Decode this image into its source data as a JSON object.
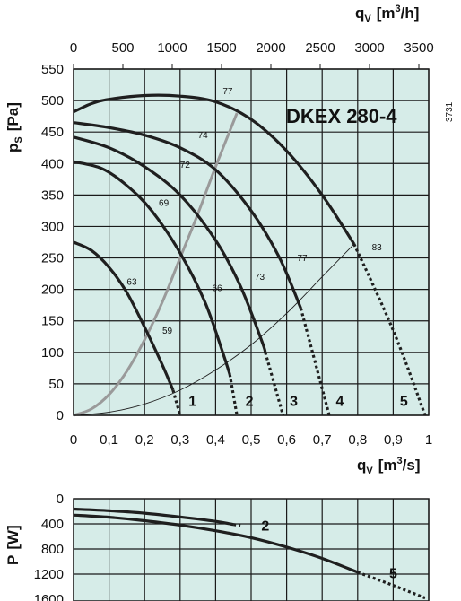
{
  "chart_data": [
    {
      "type": "line",
      "title": "DKEX 280-4",
      "side_code": "3731",
      "xlabel": "q",
      "xlabel_sub": "V",
      "xlabel_unit_pre": "[m",
      "xlabel_unit_sup": "3",
      "xlabel_unit_post": "/s]",
      "x2label": "q",
      "x2label_sub": "V",
      "x2label_unit_pre": "[m",
      "x2label_unit_sup": "3",
      "x2label_unit_post": "/h]",
      "ylabel": "p",
      "ylabel_sub": "S",
      "ylabel_unit": "[Pa]",
      "xlim": [
        0,
        1
      ],
      "ylim": [
        0,
        550
      ],
      "x_ticks": [
        "0",
        "0,1",
        "0,2",
        "0,3",
        "0,4",
        "0,5",
        "0,6",
        "0,7",
        "0,8",
        "0,9",
        "1"
      ],
      "x_tick_values": [
        0,
        0.1,
        0.2,
        0.3,
        0.4,
        0.5,
        0.6,
        0.7,
        0.8,
        0.9,
        1.0
      ],
      "x2_ticks": [
        "0",
        "500",
        "1000",
        "1500",
        "2000",
        "2500",
        "3000",
        "3500"
      ],
      "x2_tick_values": [
        0,
        500,
        1000,
        1500,
        2000,
        2500,
        3000,
        3500
      ],
      "y_ticks": [
        "0",
        "50",
        "100",
        "150",
        "200",
        "250",
        "300",
        "350",
        "400",
        "450",
        "500",
        "550"
      ],
      "y_tick_values": [
        0,
        50,
        100,
        150,
        200,
        250,
        300,
        350,
        400,
        450,
        500,
        550
      ],
      "grid": true,
      "series": [
        {
          "name": "1",
          "x": [
            0,
            0.05,
            0.1,
            0.15,
            0.2,
            0.25,
            0.28
          ],
          "y": [
            275,
            262,
            235,
            195,
            140,
            80,
            40
          ],
          "dotted_x": [
            0.28,
            0.3
          ],
          "dotted_y": [
            40,
            0
          ]
        },
        {
          "name": "2",
          "x": [
            0,
            0.08,
            0.15,
            0.22,
            0.3,
            0.37,
            0.42,
            0.44
          ],
          "y": [
            403,
            392,
            365,
            325,
            258,
            180,
            100,
            65
          ],
          "dotted_x": [
            0.44,
            0.46
          ],
          "dotted_y": [
            65,
            0
          ]
        },
        {
          "name": "3",
          "x": [
            0,
            0.1,
            0.2,
            0.3,
            0.4,
            0.47,
            0.53,
            0.54
          ],
          "y": [
            442,
            425,
            395,
            350,
            278,
            205,
            118,
            100
          ],
          "dotted_x": [
            0.54,
            0.59
          ],
          "dotted_y": [
            100,
            0
          ]
        },
        {
          "name": "4",
          "x": [
            0,
            0.1,
            0.2,
            0.3,
            0.4,
            0.5,
            0.58,
            0.64
          ],
          "y": [
            465,
            457,
            445,
            425,
            390,
            325,
            250,
            170
          ],
          "dotted_x": [
            0.64,
            0.72
          ],
          "dotted_y": [
            170,
            0
          ]
        },
        {
          "name": "5",
          "x": [
            0,
            0.05,
            0.1,
            0.2,
            0.3,
            0.4,
            0.5,
            0.6,
            0.7,
            0.79
          ],
          "y": [
            482,
            495,
            502,
            508,
            507,
            498,
            470,
            420,
            350,
            272
          ],
          "dotted_x": [
            0.79,
            0.9,
            0.99
          ],
          "dotted_y": [
            272,
            135,
            0
          ]
        }
      ],
      "efficiency_labels": [
        {
          "text": "77",
          "x": 0.42,
          "y": 510
        },
        {
          "text": "74",
          "x": 0.35,
          "y": 440
        },
        {
          "text": "72",
          "x": 0.3,
          "y": 393
        },
        {
          "text": "69",
          "x": 0.24,
          "y": 333
        },
        {
          "text": "63",
          "x": 0.15,
          "y": 207
        },
        {
          "text": "59",
          "x": 0.25,
          "y": 130
        },
        {
          "text": "66",
          "x": 0.39,
          "y": 197
        },
        {
          "text": "73",
          "x": 0.51,
          "y": 215
        },
        {
          "text": "77",
          "x": 0.63,
          "y": 245
        },
        {
          "text": "83",
          "x": 0.84,
          "y": 262
        }
      ],
      "fan_labels": [
        {
          "text": "1",
          "x": 0.335,
          "y": 15
        },
        {
          "text": "2",
          "x": 0.495,
          "y": 15
        },
        {
          "text": "3",
          "x": 0.62,
          "y": 15
        },
        {
          "text": "4",
          "x": 0.75,
          "y": 15
        },
        {
          "text": "5",
          "x": 0.93,
          "y": 15
        }
      ],
      "system_curve": {
        "x": [
          0,
          0.1,
          0.2,
          0.3,
          0.4,
          0.5,
          0.6,
          0.7,
          0.79
        ],
        "y": [
          0,
          5,
          18,
          40,
          72,
          112,
          162,
          220,
          272
        ]
      },
      "optimum_line": {
        "x": [
          0,
          0.05,
          0.1,
          0.15,
          0.2,
          0.25,
          0.3,
          0.35,
          0.4,
          0.46
        ],
        "y": [
          0,
          10,
          33,
          70,
          120,
          180,
          250,
          320,
          395,
          480
        ]
      }
    },
    {
      "type": "line",
      "xlabel": "",
      "ylabel": "P",
      "ylabel_unit": "[W]",
      "xlim": [
        0,
        1
      ],
      "ylim": [
        0,
        1600
      ],
      "y_inverted": true,
      "y_ticks": [
        "0",
        "400",
        "800",
        "1200",
        "1600"
      ],
      "y_tick_values": [
        0,
        400,
        800,
        1200,
        1600
      ],
      "grid": true,
      "series": [
        {
          "name": "2",
          "x": [
            0,
            0.1,
            0.2,
            0.3,
            0.4,
            0.45
          ],
          "y": [
            165,
            190,
            230,
            290,
            360,
            410
          ],
          "dotted_x": [
            0.45,
            0.47
          ],
          "dotted_y": [
            410,
            425
          ]
        },
        {
          "name": "5",
          "x": [
            0,
            0.1,
            0.2,
            0.3,
            0.4,
            0.5,
            0.6,
            0.7,
            0.8
          ],
          "y": [
            260,
            295,
            350,
            420,
            510,
            620,
            770,
            950,
            1170
          ],
          "dotted_x": [
            0.8,
            0.9,
            0.99
          ],
          "dotted_y": [
            1170,
            1380,
            1580
          ]
        }
      ],
      "series_labels": [
        {
          "text": "2",
          "x": 0.54,
          "y": 420
        },
        {
          "text": "5",
          "x": 0.9,
          "y": 1180
        }
      ]
    }
  ],
  "colors": {
    "plot_bg": "#d6ece8",
    "grid": "#1a1a1a",
    "curve": "#1f1f1f",
    "optimum": "#9a9a9a",
    "text": "#111111"
  }
}
